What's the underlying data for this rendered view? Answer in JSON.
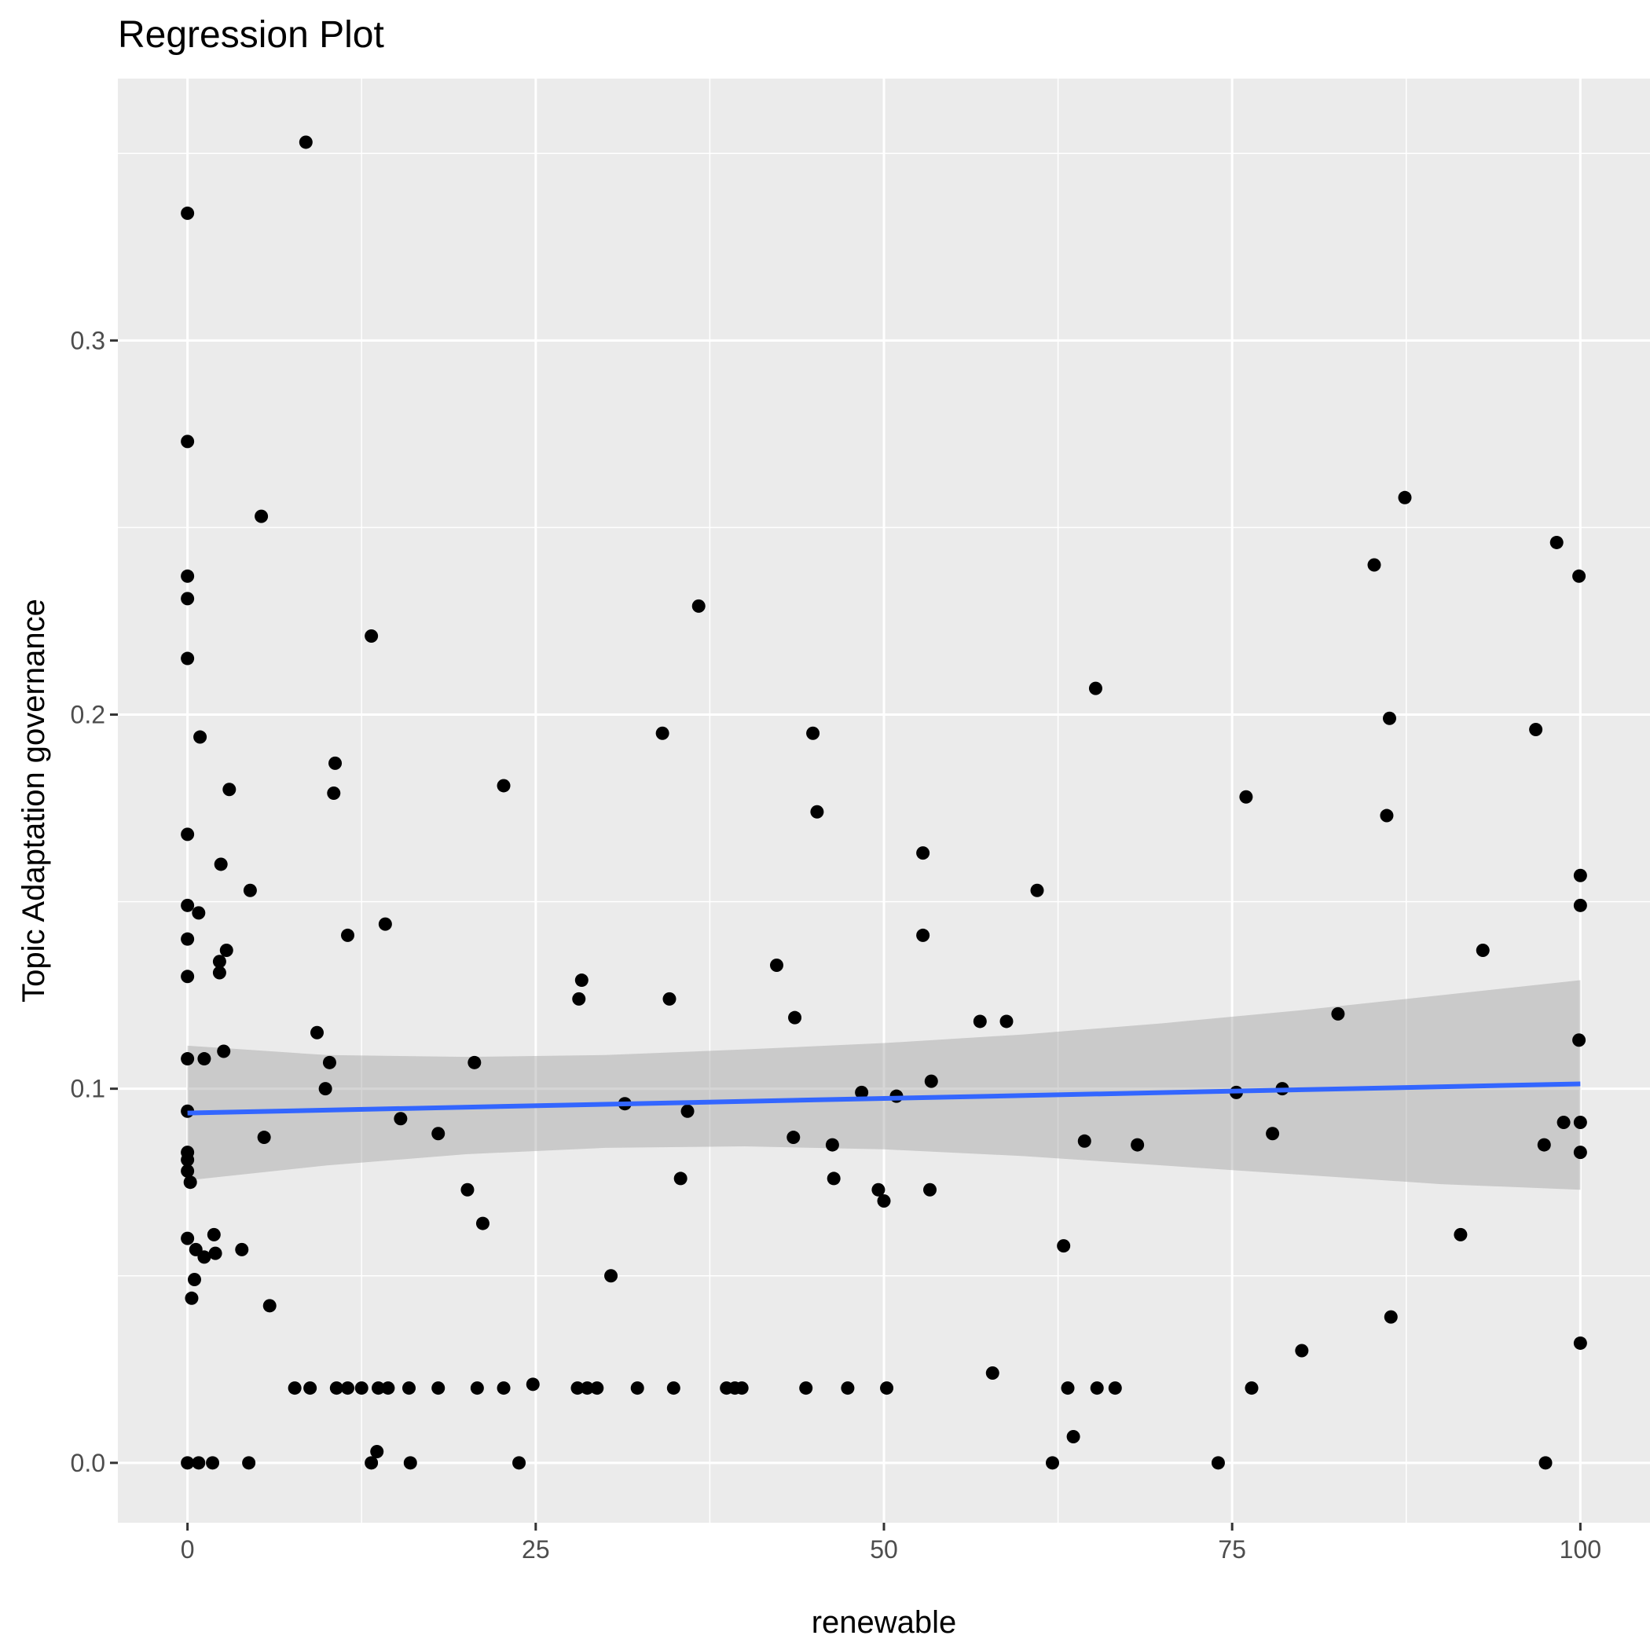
{
  "chart_data": {
    "type": "scatter",
    "title": "Regression Plot",
    "xlabel": "renewable",
    "ylabel": "Topic Adaptation governance",
    "xlim": [
      -5,
      105
    ],
    "ylim": [
      -0.016,
      0.37
    ],
    "x_ticks": [
      0,
      25,
      50,
      75,
      100
    ],
    "y_ticks": [
      0.0,
      0.1,
      0.2,
      0.3
    ],
    "x_tick_labels": [
      "0",
      "25",
      "50",
      "75",
      "100"
    ],
    "y_tick_labels": [
      "0.0",
      "0.1",
      "0.2",
      "0.3"
    ],
    "grid": true,
    "legend": "none",
    "colors": {
      "panel": "#ebebeb",
      "grid": "#ffffff",
      "points": "#000000",
      "regression_line": "#3366ff",
      "confidence_band": "#999999"
    },
    "regression": {
      "x": [
        0,
        100
      ],
      "y": [
        0.0935,
        0.1013
      ],
      "band_x": [
        0,
        10,
        20,
        30,
        40,
        50,
        60,
        70,
        80,
        90,
        100
      ],
      "band_lower": [
        0.0755,
        0.0795,
        0.0825,
        0.0842,
        0.0846,
        0.0838,
        0.082,
        0.0795,
        0.077,
        0.0745,
        0.073
      ],
      "band_upper": [
        0.1115,
        0.109,
        0.1085,
        0.109,
        0.1105,
        0.1122,
        0.1145,
        0.1175,
        0.121,
        0.125,
        0.129
      ]
    },
    "points": [
      [
        0,
        0.334
      ],
      [
        0,
        0.273
      ],
      [
        0,
        0.237
      ],
      [
        0,
        0.231
      ],
      [
        0,
        0.215
      ],
      [
        0,
        0.168
      ],
      [
        0,
        0.149
      ],
      [
        0,
        0.14
      ],
      [
        0,
        0.13
      ],
      [
        0,
        0.108
      ],
      [
        0,
        0.094
      ],
      [
        0,
        0.083
      ],
      [
        0,
        0.081
      ],
      [
        0,
        0.078
      ],
      [
        0.2,
        0.075
      ],
      [
        0,
        0.06
      ],
      [
        0.5,
        0.049
      ],
      [
        0.3,
        0.044
      ],
      [
        0.6,
        0.057
      ],
      [
        1.2,
        0.055
      ],
      [
        0,
        0
      ],
      [
        0.8,
        0
      ],
      [
        1.8,
        0
      ],
      [
        0.8,
        0.147
      ],
      [
        0.9,
        0.194
      ],
      [
        1.2,
        0.108
      ],
      [
        1.9,
        0.061
      ],
      [
        2.0,
        0.056
      ],
      [
        2.3,
        0.134
      ],
      [
        2.3,
        0.131
      ],
      [
        2.4,
        0.16
      ],
      [
        2.6,
        0.11
      ],
      [
        2.8,
        0.137
      ],
      [
        3.0,
        0.18
      ],
      [
        3.9,
        0.057
      ],
      [
        4.4,
        0
      ],
      [
        4.5,
        0.153
      ],
      [
        5.3,
        0.253
      ],
      [
        5.5,
        0.087
      ],
      [
        5.9,
        0.042
      ],
      [
        7.7,
        0.02
      ],
      [
        8.5,
        0.353
      ],
      [
        8.8,
        0.02
      ],
      [
        9.3,
        0.115
      ],
      [
        9.9,
        0.1
      ],
      [
        10.2,
        0.107
      ],
      [
        10.5,
        0.179
      ],
      [
        10.6,
        0.187
      ],
      [
        10.7,
        0.02
      ],
      [
        11.5,
        0.141
      ],
      [
        11.5,
        0.02
      ],
      [
        12.5,
        0.02
      ],
      [
        13.2,
        0.221
      ],
      [
        13.2,
        0
      ],
      [
        13.6,
        0.003
      ],
      [
        13.7,
        0.02
      ],
      [
        14.2,
        0.144
      ],
      [
        14.4,
        0.02
      ],
      [
        15.3,
        0.092
      ],
      [
        15.9,
        0.02
      ],
      [
        16.0,
        0
      ],
      [
        18.0,
        0.088
      ],
      [
        18.0,
        0.02
      ],
      [
        20.1,
        0.073
      ],
      [
        20.6,
        0.107
      ],
      [
        20.8,
        0.02
      ],
      [
        21.2,
        0.064
      ],
      [
        22.7,
        0.181
      ],
      [
        22.7,
        0.02
      ],
      [
        23.8,
        0
      ],
      [
        24.8,
        0.021
      ],
      [
        28.0,
        0.02
      ],
      [
        28.1,
        0.124
      ],
      [
        28.3,
        0.129
      ],
      [
        28.7,
        0.02
      ],
      [
        29.4,
        0.02
      ],
      [
        30.4,
        0.05
      ],
      [
        31.4,
        0.096
      ],
      [
        32.3,
        0.02
      ],
      [
        34.1,
        0.195
      ],
      [
        34.6,
        0.124
      ],
      [
        34.9,
        0.02
      ],
      [
        35.4,
        0.076
      ],
      [
        35.9,
        0.094
      ],
      [
        36.7,
        0.229
      ],
      [
        38.7,
        0.02
      ],
      [
        39.3,
        0.02
      ],
      [
        39.8,
        0.02
      ],
      [
        42.3,
        0.133
      ],
      [
        43.5,
        0.087
      ],
      [
        43.6,
        0.119
      ],
      [
        44.4,
        0.02
      ],
      [
        44.9,
        0.195
      ],
      [
        45.2,
        0.174
      ],
      [
        46.3,
        0.085
      ],
      [
        46.4,
        0.076
      ],
      [
        47.4,
        0.02
      ],
      [
        48.4,
        0.099
      ],
      [
        49.6,
        0.073
      ],
      [
        50.0,
        0.07
      ],
      [
        50.2,
        0.02
      ],
      [
        50.9,
        0.098
      ],
      [
        52.8,
        0.163
      ],
      [
        52.8,
        0.141
      ],
      [
        53.3,
        0.073
      ],
      [
        53.4,
        0.102
      ],
      [
        56.9,
        0.118
      ],
      [
        57.8,
        0.024
      ],
      [
        58.8,
        0.118
      ],
      [
        61.0,
        0.153
      ],
      [
        62.1,
        0
      ],
      [
        62.9,
        0.058
      ],
      [
        63.2,
        0.02
      ],
      [
        63.6,
        0.007
      ],
      [
        64.4,
        0.086
      ],
      [
        65.2,
        0.207
      ],
      [
        65.3,
        0.02
      ],
      [
        66.6,
        0.02
      ],
      [
        68.2,
        0.085
      ],
      [
        74.0,
        0
      ],
      [
        75.3,
        0.099
      ],
      [
        76.0,
        0.178
      ],
      [
        76.4,
        0.02
      ],
      [
        77.9,
        0.088
      ],
      [
        78.6,
        0.1
      ],
      [
        80.0,
        0.03
      ],
      [
        82.6,
        0.12
      ],
      [
        85.2,
        0.24
      ],
      [
        86.1,
        0.173
      ],
      [
        86.3,
        0.199
      ],
      [
        86.4,
        0.039
      ],
      [
        87.4,
        0.258
      ],
      [
        91.4,
        0.061
      ],
      [
        93.0,
        0.137
      ],
      [
        96.8,
        0.196
      ],
      [
        97.4,
        0.085
      ],
      [
        97.5,
        0
      ],
      [
        98.3,
        0.246
      ],
      [
        98.8,
        0.091
      ],
      [
        99.9,
        0.237
      ],
      [
        99.9,
        0.113
      ],
      [
        100,
        0.157
      ],
      [
        100,
        0.149
      ],
      [
        100,
        0.091
      ],
      [
        100,
        0.083
      ],
      [
        100,
        0.032
      ]
    ]
  }
}
